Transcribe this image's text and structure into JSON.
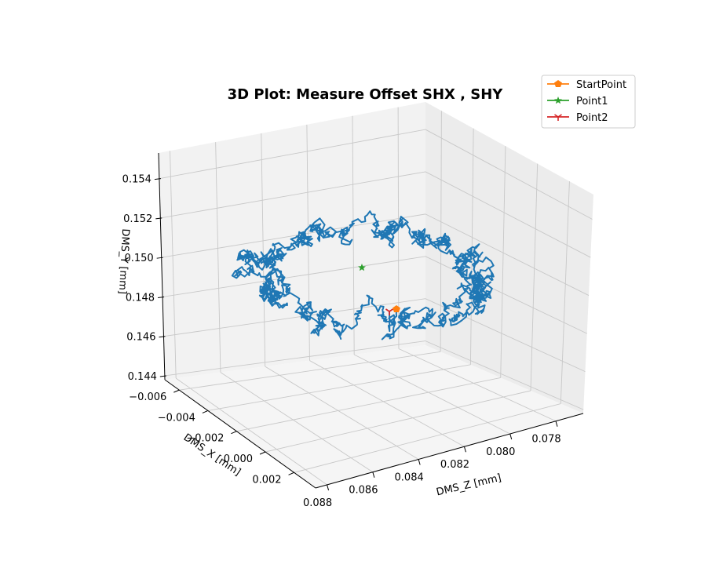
{
  "chart_data": {
    "type": "line",
    "projection": "3d",
    "title": "3D Plot: Measure Offset SHX , SHY",
    "axes": {
      "x": {
        "label": "DMS_X [mm]",
        "ticks": [
          "−0.006",
          "−0.004",
          "−0.002",
          "0.000",
          "0.002"
        ],
        "range": [
          -0.007,
          0.0035
        ]
      },
      "y": {
        "label": "DMS_Y [mm]",
        "ticks": [
          "0.144",
          "0.146",
          "0.148",
          "0.150",
          "0.152",
          "0.154"
        ],
        "range": [
          0.1438,
          0.1553
        ]
      },
      "z": {
        "label": "DMS_Z [mm]",
        "ticks": [
          "0.088",
          "0.086",
          "0.084",
          "0.082",
          "0.080",
          "0.078"
        ],
        "range": [
          0.0768,
          0.0885
        ]
      }
    },
    "grid": true,
    "legend": {
      "placement": "top-right",
      "entries": [
        {
          "label": "StartPoint",
          "color": "#ff7f0e",
          "marker": "pentagon"
        },
        {
          "label": "Point1",
          "color": "#2ca02c",
          "marker": "star"
        },
        {
          "label": "Point2",
          "color": "#d62728",
          "marker": "tri_down"
        }
      ]
    },
    "series": [
      {
        "color": "#1f77b4",
        "description_values": "random-walk trajectory, roughly circular path in Z/Y plane"
      }
    ],
    "markers": [
      {
        "name": "StartPoint",
        "x": 0.0,
        "y": 0.1467,
        "z": 0.083
      },
      {
        "name": "Point1",
        "x": -0.002,
        "y": 0.15,
        "z": 0.0845
      },
      {
        "name": "Point2",
        "x": 0.0,
        "y": 0.1467,
        "z": 0.0832
      }
    ]
  }
}
